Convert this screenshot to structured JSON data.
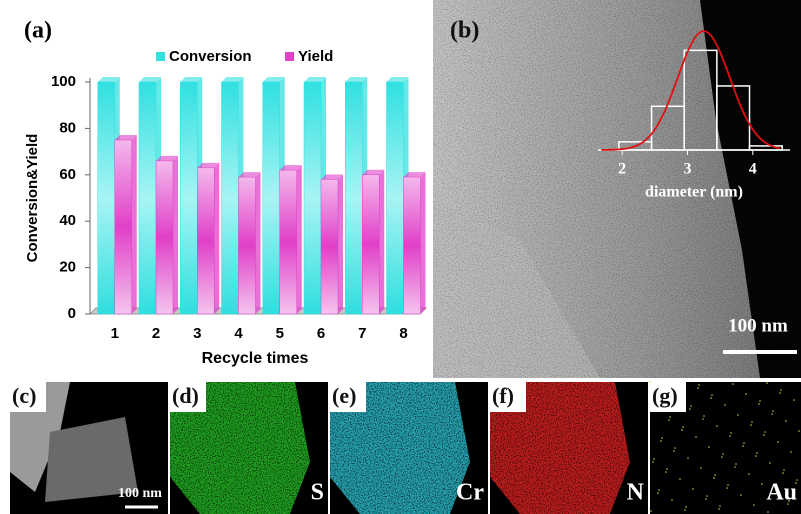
{
  "chart_data": [
    {
      "type": "bar",
      "panel_label": "(a)",
      "categories": [
        "1",
        "2",
        "3",
        "4",
        "5",
        "6",
        "7",
        "8"
      ],
      "series": [
        {
          "name": "Conversion",
          "color": "#33e0e0",
          "values": [
            100,
            100,
            100,
            100,
            100,
            100,
            100,
            100
          ]
        },
        {
          "name": "Yield",
          "color": "#e040c8",
          "values": [
            75,
            66,
            63,
            59,
            62,
            58,
            60,
            59
          ]
        }
      ],
      "ylim": [
        0,
        100
      ],
      "yticks": [
        0,
        20,
        40,
        60,
        80,
        100
      ],
      "xlabel": "Recycle times",
      "ylabel": "Conversion&Yield",
      "legend": "top"
    },
    {
      "type": "histogram",
      "bins": [
        1.95,
        2.45,
        2.95,
        3.45,
        3.95,
        4.45
      ],
      "values": [
        8,
        43,
        98,
        63,
        4
      ],
      "color": "#ffffff",
      "fit": {
        "mean": 3.25,
        "sigma": 0.4,
        "peak": 117,
        "color": "#dd1111"
      },
      "xlim": [
        1.63,
        4.57
      ],
      "ylim": [
        0,
        120
      ],
      "xticks": [
        2,
        3,
        4
      ],
      "xlabel": "diameter (nm)"
    }
  ],
  "panels": [
    {
      "label": "(b)",
      "annotation": "100 nm"
    },
    {
      "label": "(c)",
      "annotation": "100 nm",
      "color": "#9a9a9a"
    },
    {
      "label": "(d)",
      "annotation": "S",
      "color": "#22b022"
    },
    {
      "label": "(e)",
      "annotation": "Cr",
      "color": "#2ab4c4"
    },
    {
      "label": "(f)",
      "annotation": "N",
      "color": "#d42020"
    },
    {
      "label": "(g)",
      "annotation": "Au",
      "color": "#c8c840"
    }
  ]
}
